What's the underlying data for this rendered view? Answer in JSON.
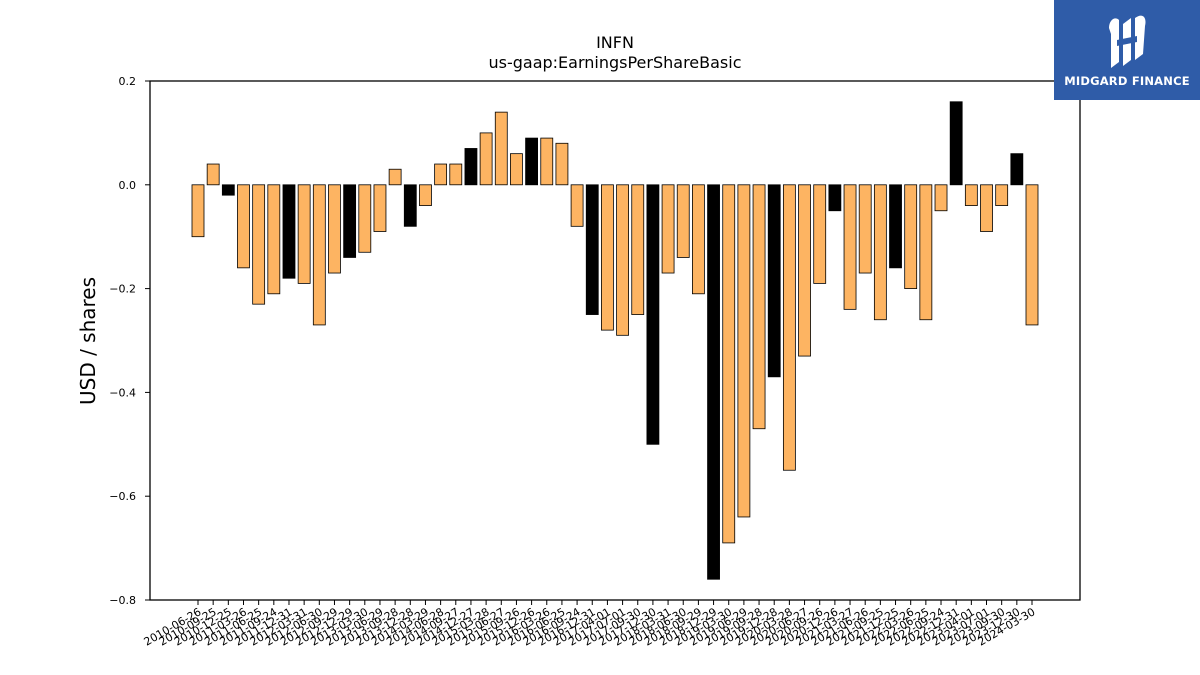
{
  "brand": {
    "name": "MIDGARD FINANCE",
    "icon": "midgard-logo-icon",
    "color": "#2f5ca8"
  },
  "chart_data": {
    "type": "bar",
    "title": "INFN",
    "subtitle": "us-gaap:EarningsPerShareBasic",
    "xlabel": "",
    "ylabel": "USD / shares",
    "ylim": [
      -0.8,
      0.2
    ],
    "yticks": [
      "0.2",
      "0.0",
      "−0.2",
      "−0.4",
      "−0.6",
      "−0.8"
    ],
    "grid": false,
    "colors": {
      "quarterly": "#fdb462",
      "annual": "#000000",
      "edge": "#000000"
    },
    "categories": [
      "2010-06-26",
      "2010-09-25",
      "2010-12-25",
      "2011-03-26",
      "2011-06-25",
      "2011-09-24",
      "2011-12-31",
      "2012-03-31",
      "2012-06-30",
      "2012-09-29",
      "2012-12-29",
      "2013-03-30",
      "2013-06-29",
      "2013-09-28",
      "2013-12-28",
      "2014-03-29",
      "2014-06-28",
      "2014-09-27",
      "2014-12-27",
      "2015-03-28",
      "2015-06-27",
      "2015-09-26",
      "2015-12-26",
      "2016-03-26",
      "2016-06-25",
      "2016-09-24",
      "2016-12-31",
      "2017-04-01",
      "2017-07-01",
      "2017-09-30",
      "2017-12-30",
      "2018-03-31",
      "2018-06-30",
      "2018-09-29",
      "2018-12-29",
      "2019-03-30",
      "2019-06-29",
      "2019-09-28",
      "2019-12-28",
      "2020-03-28",
      "2020-06-27",
      "2020-09-26",
      "2020-12-26",
      "2021-03-27",
      "2021-06-26",
      "2021-09-25",
      "2021-12-25",
      "2022-03-26",
      "2022-06-25",
      "2022-09-24",
      "2022-12-31",
      "2023-04-01",
      "2023-07-01",
      "2023-09-30",
      "2023-12-30",
      "2024-03-30"
    ],
    "values": [
      -0.1,
      0.04,
      -0.02,
      -0.16,
      -0.23,
      -0.21,
      -0.18,
      -0.19,
      -0.27,
      -0.17,
      -0.14,
      -0.13,
      -0.09,
      0.03,
      -0.08,
      -0.04,
      0.04,
      0.04,
      0.07,
      0.1,
      0.14,
      0.06,
      0.09,
      0.09,
      0.08,
      -0.08,
      -0.25,
      -0.28,
      -0.29,
      -0.25,
      -0.5,
      -0.17,
      -0.14,
      -0.21,
      -0.76,
      -0.69,
      -0.64,
      -0.47,
      -0.37,
      -0.55,
      -0.33,
      -0.19,
      -0.05,
      -0.24,
      -0.17,
      -0.26,
      -0.16,
      -0.2,
      -0.26,
      -0.05,
      0.16,
      -0.04,
      -0.09,
      -0.04,
      0.06,
      -0.27
    ],
    "annual_flags": [
      0,
      0,
      1,
      0,
      0,
      0,
      1,
      0,
      0,
      0,
      1,
      0,
      0,
      0,
      1,
      0,
      0,
      0,
      1,
      0,
      0,
      0,
      1,
      0,
      0,
      0,
      1,
      0,
      0,
      0,
      1,
      0,
      0,
      0,
      1,
      0,
      0,
      0,
      1,
      0,
      0,
      0,
      1,
      0,
      0,
      0,
      1,
      0,
      0,
      0,
      1,
      0,
      0,
      0,
      1,
      0
    ]
  }
}
